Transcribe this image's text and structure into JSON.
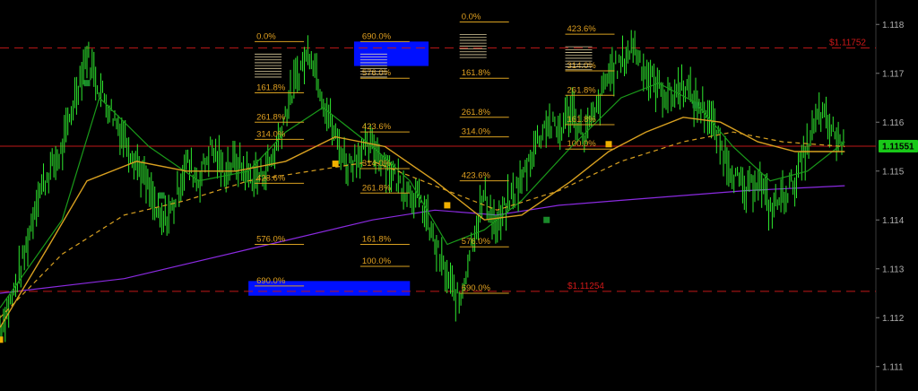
{
  "chart_data": {
    "type": "line",
    "title": "",
    "xlabel": "",
    "ylabel": "",
    "ylim": [
      1.1105,
      1.1185
    ],
    "y_axis_position": "right",
    "y_ticks": [
      {
        "value": 1.118,
        "label": "1.118"
      },
      {
        "value": 1.117,
        "label": "1.117"
      },
      {
        "value": 1.116,
        "label": "1.116"
      },
      {
        "value": 1.115,
        "label": "1.115"
      },
      {
        "value": 1.114,
        "label": "1.114"
      },
      {
        "value": 1.113,
        "label": "1.113"
      },
      {
        "value": 1.112,
        "label": "1.112"
      },
      {
        "value": 1.111,
        "label": "1.111"
      }
    ],
    "current_price": {
      "value": 1.11551,
      "label": "1.11551",
      "color": "#18c818"
    },
    "horizontal_lines": [
      {
        "value": 1.11752,
        "label": "$1.11752",
        "style": "dashed",
        "color": "#c01818"
      },
      {
        "value": 1.11254,
        "label": "$1.11254",
        "style": "dashed",
        "color": "#c01818"
      },
      {
        "value": 1.11551,
        "label": "",
        "style": "solid",
        "color": "#c01818"
      }
    ],
    "colors": {
      "price_bars": "#2ee82e",
      "ma_fast": "#1a9a1a",
      "ma_medium": "#d8a020",
      "ma_slow": "#8a2ae0",
      "fib_lines": "#d8a020",
      "target_box": "#0010ff",
      "markers_orange": "#f0b000",
      "markers_green": "#1a8a2a"
    },
    "price_path": [
      [
        0,
        1.1118
      ],
      [
        2,
        1.1124
      ],
      [
        4,
        1.1133
      ],
      [
        6,
        1.1145
      ],
      [
        8,
        1.115
      ],
      [
        10,
        1.1154
      ],
      [
        12,
        1.1165
      ],
      [
        14,
        1.1174
      ],
      [
        16,
        1.1167
      ],
      [
        18,
        1.1162
      ],
      [
        20,
        1.1157
      ],
      [
        22,
        1.1152
      ],
      [
        24,
        1.1146
      ],
      [
        26,
        1.1139
      ],
      [
        28,
        1.1143
      ],
      [
        30,
        1.1152
      ],
      [
        32,
        1.1148
      ],
      [
        34,
        1.1155
      ],
      [
        36,
        1.115
      ],
      [
        38,
        1.1152
      ],
      [
        40,
        1.1149
      ],
      [
        42,
        1.1149
      ],
      [
        44,
        1.1153
      ],
      [
        46,
        1.1162
      ],
      [
        48,
        1.117
      ],
      [
        50,
        1.1175
      ],
      [
        52,
        1.1165
      ],
      [
        54,
        1.1157
      ],
      [
        56,
        1.1151
      ],
      [
        58,
        1.1154
      ],
      [
        60,
        1.1155
      ],
      [
        62,
        1.1152
      ],
      [
        64,
        1.1148
      ],
      [
        66,
        1.1146
      ],
      [
        68,
        1.1143
      ],
      [
        70,
        1.1135
      ],
      [
        72,
        1.1128
      ],
      [
        74,
        1.1123
      ],
      [
        76,
        1.1136
      ],
      [
        78,
        1.1145
      ],
      [
        80,
        1.1138
      ],
      [
        82,
        1.1144
      ],
      [
        84,
        1.1148
      ],
      [
        86,
        1.1155
      ],
      [
        88,
        1.116
      ],
      [
        90,
        1.1158
      ],
      [
        92,
        1.1163
      ],
      [
        94,
        1.1157
      ],
      [
        96,
        1.1162
      ],
      [
        98,
        1.117
      ],
      [
        100,
        1.1172
      ],
      [
        102,
        1.1176
      ],
      [
        104,
        1.117
      ],
      [
        106,
        1.1167
      ],
      [
        108,
        1.1165
      ],
      [
        110,
        1.1168
      ],
      [
        112,
        1.1164
      ],
      [
        114,
        1.1162
      ],
      [
        116,
        1.1155
      ],
      [
        118,
        1.115
      ],
      [
        120,
        1.1145
      ],
      [
        122,
        1.1149
      ],
      [
        124,
        1.1142
      ],
      [
        126,
        1.1145
      ],
      [
        128,
        1.1148
      ],
      [
        130,
        1.1155
      ],
      [
        132,
        1.1162
      ],
      [
        134,
        1.1158
      ],
      [
        136,
        1.1155
      ]
    ],
    "ma_fast": [
      [
        0,
        1.1122
      ],
      [
        10,
        1.114
      ],
      [
        16,
        1.1165
      ],
      [
        24,
        1.1155
      ],
      [
        32,
        1.1148
      ],
      [
        40,
        1.115
      ],
      [
        46,
        1.1158
      ],
      [
        52,
        1.1163
      ],
      [
        60,
        1.1155
      ],
      [
        66,
        1.1148
      ],
      [
        72,
        1.1135
      ],
      [
        78,
        1.1138
      ],
      [
        84,
        1.1144
      ],
      [
        92,
        1.1155
      ],
      [
        100,
        1.1165
      ],
      [
        106,
        1.1168
      ],
      [
        112,
        1.1164
      ],
      [
        118,
        1.1155
      ],
      [
        124,
        1.1148
      ],
      [
        130,
        1.115
      ],
      [
        136,
        1.1156
      ]
    ],
    "ma_medium": [
      [
        0,
        1.1118
      ],
      [
        8,
        1.1135
      ],
      [
        14,
        1.1148
      ],
      [
        22,
        1.1152
      ],
      [
        30,
        1.115
      ],
      [
        38,
        1.115
      ],
      [
        46,
        1.1152
      ],
      [
        54,
        1.1157
      ],
      [
        62,
        1.1155
      ],
      [
        70,
        1.1148
      ],
      [
        78,
        1.114
      ],
      [
        84,
        1.1141
      ],
      [
        92,
        1.1148
      ],
      [
        98,
        1.1154
      ],
      [
        104,
        1.1158
      ],
      [
        110,
        1.1161
      ],
      [
        116,
        1.116
      ],
      [
        122,
        1.1156
      ],
      [
        128,
        1.1154
      ],
      [
        136,
        1.1154
      ]
    ],
    "ma_dashed": [
      [
        0,
        1.112
      ],
      [
        10,
        1.1133
      ],
      [
        20,
        1.1141
      ],
      [
        30,
        1.1144
      ],
      [
        40,
        1.1148
      ],
      [
        50,
        1.115
      ],
      [
        60,
        1.1152
      ],
      [
        70,
        1.1147
      ],
      [
        80,
        1.1142
      ],
      [
        90,
        1.1146
      ],
      [
        100,
        1.1152
      ],
      [
        110,
        1.1156
      ],
      [
        118,
        1.1158
      ],
      [
        126,
        1.1156
      ],
      [
        136,
        1.1155
      ]
    ],
    "ma_slow": [
      [
        0,
        1.1125
      ],
      [
        20,
        1.1128
      ],
      [
        40,
        1.1134
      ],
      [
        60,
        1.114
      ],
      [
        70,
        1.1142
      ],
      [
        80,
        1.1141
      ],
      [
        90,
        1.1143
      ],
      [
        100,
        1.1144
      ],
      [
        110,
        1.1145
      ],
      [
        120,
        1.1146
      ],
      [
        136,
        1.1147
      ]
    ],
    "markers": [
      {
        "x": 0,
        "y": 1.11155,
        "color": "orange"
      },
      {
        "x": 54,
        "y": 1.11515,
        "color": "orange"
      },
      {
        "x": 72,
        "y": 1.1143,
        "color": "orange"
      },
      {
        "x": 98,
        "y": 1.11555,
        "color": "orange"
      },
      {
        "x": 112,
        "y": 1.11635,
        "color": "green"
      },
      {
        "x": 88,
        "y": 1.114,
        "color": "green"
      },
      {
        "x": 26,
        "y": 1.1145,
        "color": "green"
      },
      {
        "x": 14,
        "y": 1.1168,
        "color": "green"
      }
    ],
    "target_boxes": [
      {
        "x0": 57,
        "x1": 69,
        "y0": 1.11715,
        "y1": 1.11765
      },
      {
        "x0": 40,
        "x1": 66,
        "y0": 1.11245,
        "y1": 1.11275
      }
    ],
    "fib_sets": [
      {
        "x": 41,
        "labels": [
          {
            "value": 1.11765,
            "label": "0.0%"
          },
          {
            "value": 1.1166,
            "label": "161.8%"
          },
          {
            "value": 1.116,
            "label": "261.8%"
          },
          {
            "value": 1.11565,
            "label": "314.0%"
          },
          {
            "value": 1.11475,
            "label": "423.6%"
          },
          {
            "value": 1.1135,
            "label": "576.0%"
          },
          {
            "value": 1.11265,
            "label": "690.0%"
          }
        ]
      },
      {
        "x": 58,
        "labels": [
          {
            "value": 1.11765,
            "label": "690.0%"
          },
          {
            "value": 1.1169,
            "label": "576.0%"
          },
          {
            "value": 1.1158,
            "label": "423.6%"
          },
          {
            "value": 1.11505,
            "label": "314.0%"
          },
          {
            "value": 1.11455,
            "label": "261.8%"
          },
          {
            "value": 1.1135,
            "label": "161.8%"
          },
          {
            "value": 1.11305,
            "label": "100.0%"
          }
        ]
      },
      {
        "x": 74,
        "labels": [
          {
            "value": 1.11805,
            "label": "0.0%"
          },
          {
            "value": 1.1169,
            "label": "161.8%"
          },
          {
            "value": 1.1161,
            "label": "261.8%"
          },
          {
            "value": 1.1157,
            "label": "314.0%"
          },
          {
            "value": 1.1148,
            "label": "423.6%"
          },
          {
            "value": 1.11345,
            "label": "576.0%"
          },
          {
            "value": 1.1125,
            "label": "690.0%"
          }
        ]
      },
      {
        "x": 91,
        "labels": [
          {
            "value": 1.1178,
            "label": "423.6%"
          },
          {
            "value": 1.11705,
            "label": "314.0%"
          },
          {
            "value": 1.11655,
            "label": "261.8%"
          },
          {
            "value": 1.11595,
            "label": "161.8%"
          },
          {
            "value": 1.11545,
            "label": "100.0%"
          }
        ]
      }
    ]
  }
}
